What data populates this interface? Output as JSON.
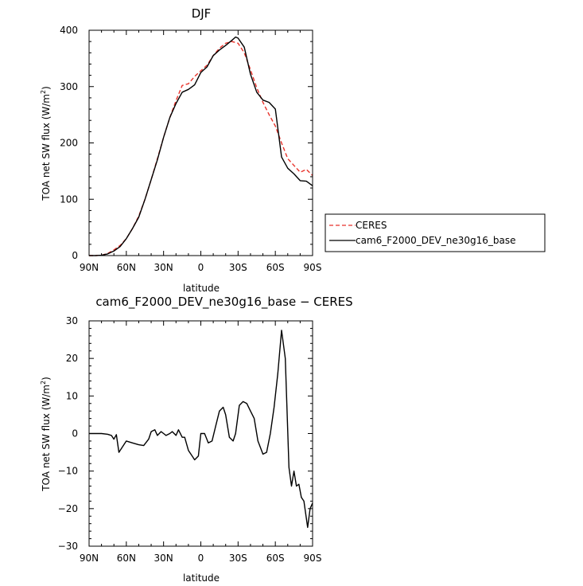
{
  "chart_data": [
    {
      "type": "line",
      "title": "DJF",
      "xlabel": "latitude",
      "ylabel": "TOA net SW flux (W/m²)",
      "ylabel_parts": [
        "TOA net SW flux (W/m",
        "2",
        ")"
      ],
      "xlim": [
        90,
        -90
      ],
      "ylim": [
        0,
        400
      ],
      "xticks": [
        {
          "value": 90,
          "label": "90N"
        },
        {
          "value": 60,
          "label": "60N"
        },
        {
          "value": 30,
          "label": "30N"
        },
        {
          "value": 0,
          "label": "0"
        },
        {
          "value": -30,
          "label": "30S"
        },
        {
          "value": -60,
          "label": "60S"
        },
        {
          "value": -90,
          "label": "90S"
        }
      ],
      "yticks": [
        0,
        100,
        200,
        300,
        400
      ],
      "legend": {
        "placement": "right",
        "entries": [
          "CERES",
          "cam6_F2000_DEV_ne30g16_base"
        ]
      },
      "series": [
        {
          "name": "CERES",
          "color": "#e8322a",
          "dash": true,
          "x": [
            90,
            85,
            80,
            75,
            70,
            65,
            60,
            55,
            50,
            45,
            40,
            35,
            30,
            25,
            20,
            15,
            10,
            5,
            0,
            -5,
            -10,
            -15,
            -20,
            -25,
            -30,
            -35,
            -40,
            -45,
            -50,
            -55,
            -60,
            -65,
            -70,
            -75,
            -80,
            -85,
            -90
          ],
          "values": [
            0,
            0,
            0.5,
            4,
            10,
            18,
            30,
            48,
            70,
            100,
            135,
            172,
            210,
            245,
            275,
            302,
            305,
            318,
            328,
            338,
            355,
            368,
            377,
            380,
            377,
            360,
            330,
            298,
            272,
            250,
            230,
            200,
            172,
            160,
            148,
            153,
            142
          ]
        },
        {
          "name": "cam6_F2000_DEV_ne30g16_base",
          "color": "#000000",
          "dash": false,
          "x": [
            90,
            85,
            80,
            75,
            70,
            65,
            60,
            55,
            50,
            45,
            40,
            35,
            30,
            25,
            20,
            15,
            10,
            5,
            0,
            -5,
            -10,
            -15,
            -20,
            -25,
            -28,
            -30,
            -35,
            -40,
            -45,
            -50,
            -55,
            -60,
            -65,
            -70,
            -75,
            -80,
            -85,
            -90
          ],
          "values": [
            0,
            0,
            0.5,
            3,
            8,
            16,
            30,
            48,
            68,
            100,
            135,
            170,
            210,
            245,
            270,
            290,
            295,
            303,
            325,
            335,
            355,
            365,
            373,
            382,
            388,
            386,
            370,
            322,
            290,
            276,
            272,
            260,
            175,
            155,
            145,
            133,
            132,
            124
          ]
        }
      ]
    },
    {
      "type": "line",
      "title": "cam6_F2000_DEV_ne30g16_base − CERES",
      "xlabel": "latitude",
      "ylabel": "TOA net SW flux (W/m²)",
      "ylabel_parts": [
        "TOA net SW flux (W/m",
        "2",
        ")"
      ],
      "xlim": [
        90,
        -90
      ],
      "ylim": [
        -30,
        30
      ],
      "xticks": [
        {
          "value": 90,
          "label": "90N"
        },
        {
          "value": 60,
          "label": "60N"
        },
        {
          "value": 30,
          "label": "30N"
        },
        {
          "value": 0,
          "label": "0"
        },
        {
          "value": -30,
          "label": "30S"
        },
        {
          "value": -60,
          "label": "60S"
        },
        {
          "value": -90,
          "label": "90S"
        }
      ],
      "yticks": [
        -30,
        -20,
        -10,
        0,
        10,
        20,
        30
      ],
      "series": [
        {
          "color": "#000000",
          "dash": false,
          "x": [
            90,
            80,
            75,
            72,
            70,
            68,
            66,
            60,
            55,
            50,
            46,
            42,
            40,
            37,
            35,
            32,
            30,
            28,
            25,
            23,
            20,
            18,
            15,
            13,
            10,
            7,
            5,
            2,
            0,
            -3,
            -6,
            -9,
            -12,
            -15,
            -18,
            -20,
            -23,
            -26,
            -28,
            -31,
            -34,
            -37,
            -40,
            -43,
            -46,
            -50,
            -53,
            -56,
            -59,
            -62,
            -65,
            -68,
            -71,
            -73,
            -75,
            -77,
            -79,
            -81,
            -83,
            -86,
            -88,
            -90
          ],
          "values": [
            0,
            0,
            -0.2,
            -0.5,
            -1.5,
            -0.3,
            -5,
            -2,
            -2.5,
            -3,
            -3.2,
            -1.5,
            0.5,
            1,
            -0.5,
            0.5,
            0,
            -0.5,
            0,
            0.5,
            -0.5,
            1,
            -1,
            -1,
            -4.5,
            -6,
            -7,
            -6,
            0,
            0,
            -2.5,
            -2,
            2,
            6,
            7,
            5,
            -1,
            -2,
            0,
            7.5,
            8.5,
            8,
            6,
            4,
            -2,
            -5.5,
            -5,
            0,
            7,
            16,
            27.5,
            20,
            -9,
            -14,
            -10,
            -14,
            -13.5,
            -17,
            -18,
            -25,
            -20,
            -18.5
          ]
        }
      ]
    }
  ]
}
